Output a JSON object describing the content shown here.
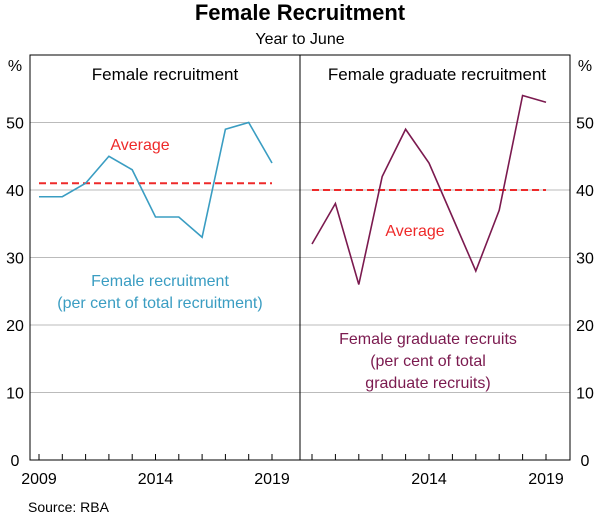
{
  "chart_data": [
    {
      "type": "line",
      "title": "Female Recruitment",
      "subtitle": "Year to June",
      "panel_title": "Female recruitment",
      "ylabel": "%",
      "ylim": [
        0,
        60
      ],
      "yticks": [
        0,
        10,
        20,
        30,
        40,
        50
      ],
      "xticks": [
        "2009",
        "2014",
        "2019"
      ],
      "x": [
        2009,
        2010,
        2011,
        2012,
        2013,
        2014,
        2015,
        2016,
        2017,
        2018,
        2019
      ],
      "series": [
        {
          "name": "Female recruitment (per cent of total recruitment)",
          "values": [
            39,
            39,
            41,
            45,
            43,
            36,
            36,
            33,
            49,
            50,
            44
          ],
          "color": "#3a9dc2"
        }
      ],
      "average": {
        "label": "Average",
        "value": 41,
        "color": "#ee2a2a"
      },
      "grid": true
    },
    {
      "type": "line",
      "panel_title": "Female graduate recruitment",
      "ylabel": "%",
      "ylim": [
        0,
        60
      ],
      "yticks": [
        0,
        10,
        20,
        30,
        40,
        50
      ],
      "xticks": [
        "2014",
        "2019"
      ],
      "x": [
        2009,
        2010,
        2011,
        2012,
        2013,
        2014,
        2015,
        2016,
        2017,
        2018,
        2019
      ],
      "series": [
        {
          "name": "Female graduate recruits (per cent of total graduate recruits)",
          "values": [
            32,
            38,
            26,
            42,
            49,
            44,
            36,
            28,
            37,
            54,
            53
          ],
          "color": "#7b1a4f"
        }
      ],
      "average": {
        "label": "Average",
        "value": 40,
        "color": "#ee2a2a"
      },
      "grid": true
    }
  ],
  "labels": {
    "left_series_lines": [
      "Female recruitment",
      "(per cent of total recruitment)"
    ],
    "right_series_lines": [
      "Female graduate recruits",
      "(per cent of total",
      "graduate recruits)"
    ]
  },
  "source": "Source:   RBA"
}
